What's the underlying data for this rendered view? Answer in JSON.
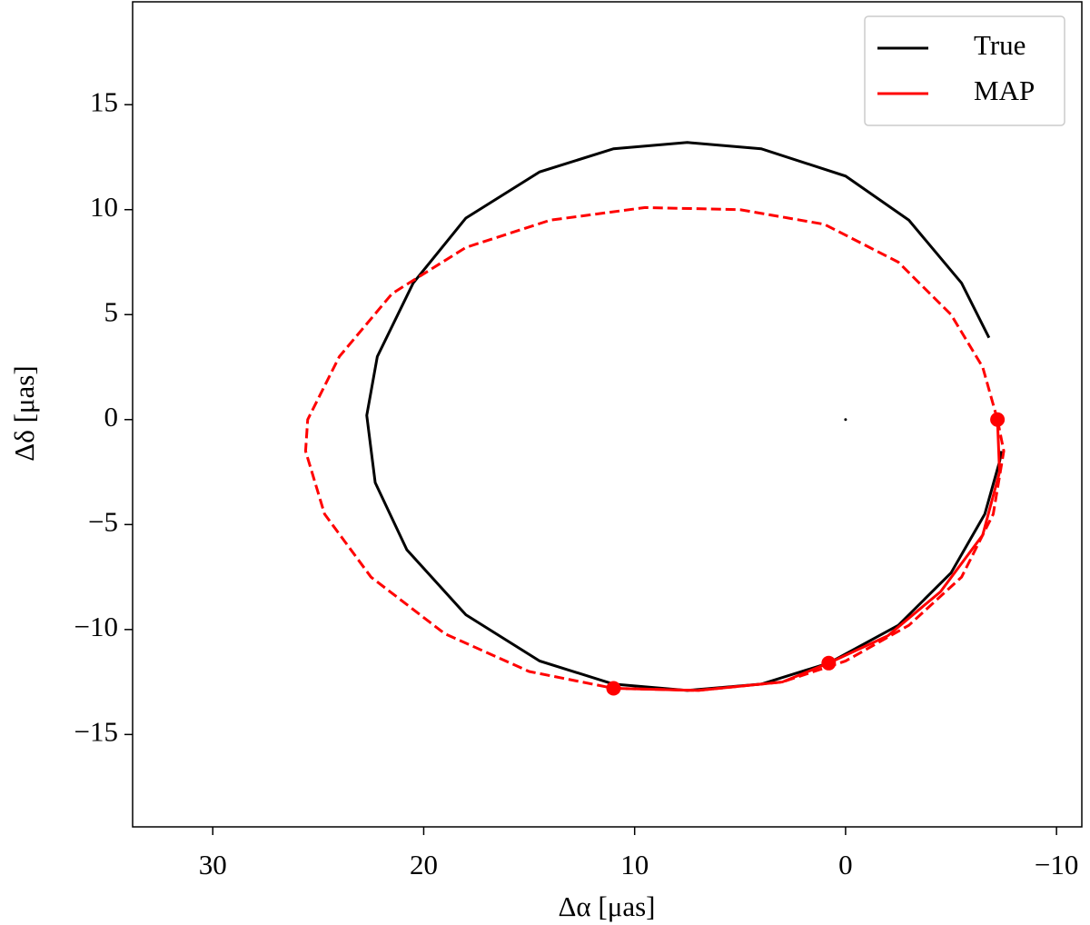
{
  "chart_data": {
    "type": "line",
    "xlabel": "Δα [μas]",
    "ylabel": "Δδ [μas]",
    "xlim": [
      33.8,
      -11.2
    ],
    "ylim": [
      -19.4,
      19.9
    ],
    "xticks": [
      30,
      20,
      10,
      0,
      {
        "value": -10,
        "label": "−10"
      }
    ],
    "yticks": [
      {
        "value": -15,
        "label": "−15"
      },
      {
        "value": -10,
        "label": "−10"
      },
      {
        "value": -5,
        "label": "−5"
      },
      0,
      5,
      10,
      15
    ],
    "legend": "upper right",
    "series": [
      {
        "name": "True",
        "color": "#000000",
        "linestyle": "solid",
        "x": [
          -6.8,
          -5.5,
          -3,
          0,
          4,
          7.5,
          11,
          14.5,
          18,
          20.5,
          22.2,
          22.7,
          22.3,
          20.8,
          18,
          14.5,
          11,
          7.5,
          4,
          0.8,
          -2.5,
          -5,
          -6.6,
          -7.3,
          -7.4
        ],
        "y": [
          3.9,
          6.5,
          9.5,
          11.6,
          12.9,
          13.2,
          12.9,
          11.8,
          9.6,
          6.5,
          3,
          0.2,
          -3,
          -6.2,
          -9.3,
          -11.5,
          -12.6,
          -12.9,
          -12.6,
          -11.6,
          -9.8,
          -7.3,
          -4.5,
          -2,
          -1.5
        ]
      },
      {
        "name": "MAP",
        "color": "#ff0000",
        "linestyle": "solid",
        "x": [
          11,
          7,
          3,
          0.8,
          -2,
          -4.5,
          -6.5,
          -7.3,
          -7.2
        ],
        "y": [
          -12.8,
          -12.9,
          -12.5,
          -11.6,
          -10.3,
          -8.2,
          -5.5,
          -2.5,
          0
        ]
      },
      {
        "color": "#ff0000",
        "linestyle": "dashed",
        "x": [
          -7.2,
          -6.5,
          -5,
          -2.5,
          1,
          5,
          9.5,
          14,
          18,
          21.5,
          24,
          25.5,
          25.6,
          24.7,
          22.5,
          19,
          15,
          11,
          7,
          3,
          0,
          -3,
          -5.5,
          -7,
          -7.5,
          -7.2
        ],
        "y": [
          0,
          2.5,
          5,
          7.5,
          9.3,
          10,
          10.1,
          9.5,
          8.2,
          6,
          3,
          0,
          -1.5,
          -4.5,
          -7.5,
          -10.2,
          -12,
          -12.8,
          -12.9,
          -12.5,
          -11.5,
          -9.8,
          -7.5,
          -4.5,
          -1.5,
          0
        ]
      },
      {
        "color": "#ff0000",
        "linestyle": "none",
        "marker": "circle",
        "x": [
          11,
          0.8,
          -7.2
        ],
        "y": [
          -12.8,
          -11.6,
          0
        ]
      },
      {
        "color": "#000000",
        "linestyle": "none",
        "marker": "dot",
        "x": [
          0
        ],
        "y": [
          0
        ]
      }
    ]
  }
}
